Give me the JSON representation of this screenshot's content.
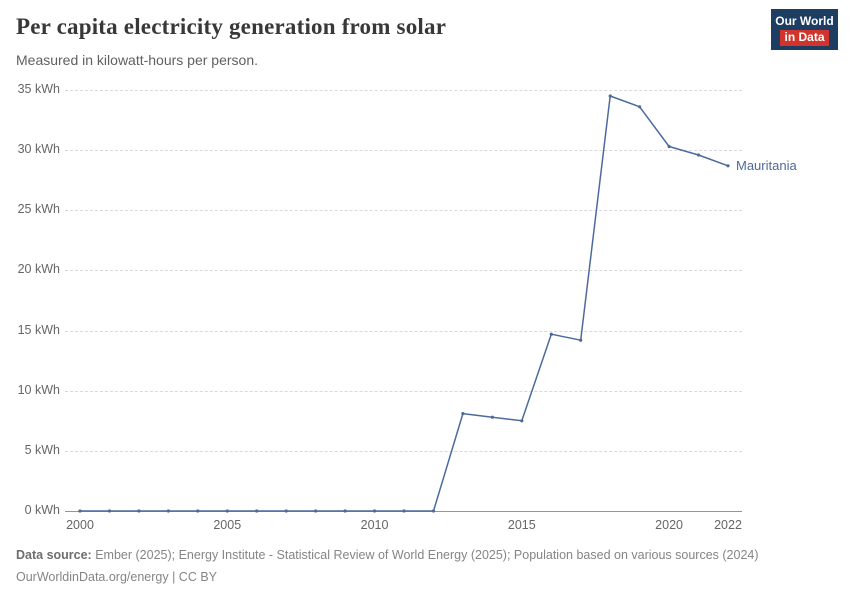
{
  "logo": {
    "line1": "Our World",
    "line2": "in Data"
  },
  "colors": {
    "line": "#4c6a9c",
    "logo_bg": "#1d3d63",
    "logo_accent": "#d0342c",
    "grid": "#d9d9d9",
    "baseline": "#969696"
  },
  "chart_data": {
    "type": "line",
    "title": "Per capita electricity generation from solar",
    "subtitle": "Measured in kilowatt-hours per person.",
    "xlabel": "",
    "ylabel": "kilowatt-hours per person",
    "xlim": [
      2000,
      2022
    ],
    "ylim": [
      0,
      35
    ],
    "grid": "horizontal-dashed",
    "legend_position": "end-of-line-label",
    "x": [
      2000,
      2001,
      2002,
      2003,
      2004,
      2005,
      2006,
      2007,
      2008,
      2009,
      2010,
      2011,
      2012,
      2013,
      2014,
      2015,
      2016,
      2017,
      2018,
      2019,
      2020,
      2021,
      2022
    ],
    "series": [
      {
        "name": "Mauritania",
        "color": "#4c6a9c",
        "values": [
          0,
          0,
          0,
          0,
          0,
          0,
          0,
          0,
          0,
          0,
          0,
          0,
          0,
          8.1,
          7.8,
          7.5,
          14.7,
          14.2,
          34.5,
          33.6,
          30.3,
          29.6,
          28.7
        ]
      }
    ],
    "x_ticks": [
      2000,
      2005,
      2010,
      2015,
      2020,
      2022
    ],
    "y_ticks": [
      0,
      5,
      10,
      15,
      20,
      25,
      30,
      35
    ],
    "y_tick_labels": [
      "0 kWh",
      "5 kWh",
      "10 kWh",
      "15 kWh",
      "20 kWh",
      "25 kWh",
      "30 kWh",
      "35 kWh"
    ]
  },
  "footer": {
    "datasource_label": "Data source:",
    "datasource_text": "Ember (2025); Energy Institute - Statistical Review of World Energy (2025); Population based on various sources (2024)",
    "link_line": "OurWorldinData.org/energy | CC BY"
  }
}
